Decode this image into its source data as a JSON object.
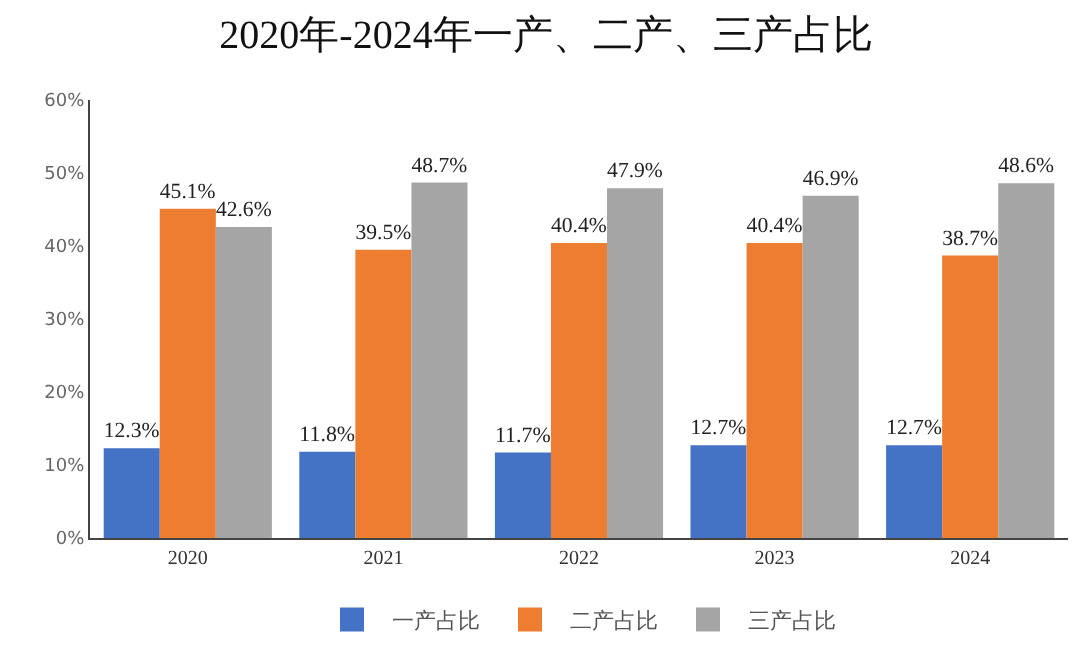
{
  "chart_data": {
    "type": "bar",
    "title": "2020年-2024年一产、二产、三产占比",
    "categories": [
      "2020",
      "2021",
      "2022",
      "2023",
      "2024"
    ],
    "series": [
      {
        "name": "一产占比",
        "color": "#4472c4",
        "values": [
          12.3,
          11.8,
          11.7,
          12.7,
          12.7
        ],
        "value_labels": [
          "12.3%",
          "11.8%",
          "11.7%",
          "12.7%",
          "12.7%"
        ]
      },
      {
        "name": "二产占比",
        "color": "#ed7d31",
        "values": [
          45.1,
          39.5,
          40.4,
          40.4,
          38.7
        ],
        "value_labels": [
          "45.1%",
          "39.5%",
          "40.4%",
          "40.4%",
          "38.7%"
        ]
      },
      {
        "name": "三产占比",
        "color": "#a5a5a5",
        "values": [
          42.6,
          48.7,
          47.9,
          46.9,
          48.6
        ],
        "value_labels": [
          "42.6%",
          "48.7%",
          "47.9%",
          "46.9%",
          "48.6%"
        ]
      }
    ],
    "ylim": [
      0,
      60
    ],
    "yticks": [
      {
        "value": 0,
        "label": "0%"
      },
      {
        "value": 10,
        "label": "10%"
      },
      {
        "value": 20,
        "label": "20%"
      },
      {
        "value": 30,
        "label": "30%"
      },
      {
        "value": 40,
        "label": "40%"
      },
      {
        "value": 50,
        "label": "50%"
      },
      {
        "value": 60,
        "label": "60%"
      }
    ],
    "legend": "bottom"
  }
}
